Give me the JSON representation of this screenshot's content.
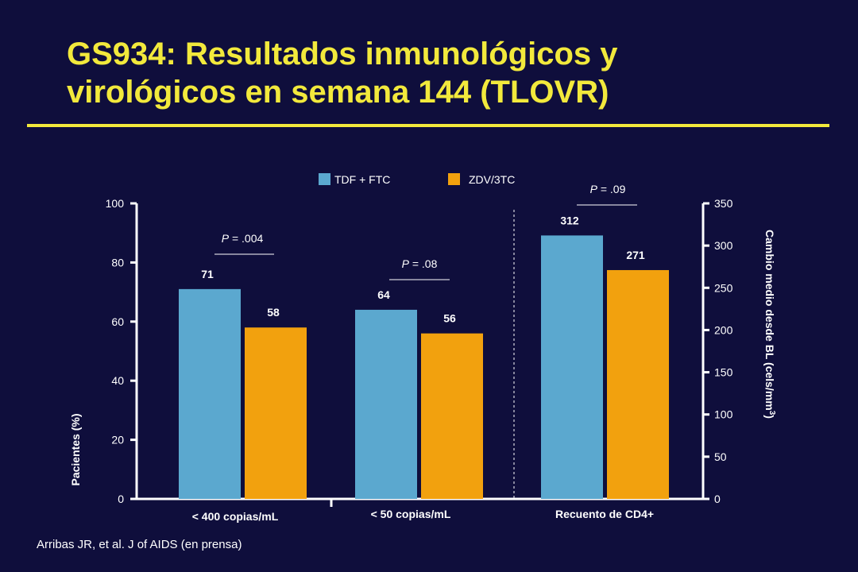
{
  "slide": {
    "title_line1": "GS934: Resultados inmunológicos y",
    "title_line2": "virológicos en semana 144 (TLOVR)",
    "citation": "Arribas JR, et al. J of AIDS (en prensa)"
  },
  "colors": {
    "background": "#0f0e3c",
    "title": "#f2e93c",
    "tdf_ftc": "#5ba8cf",
    "zdv_3tc": "#f2a10e",
    "text": "#ffffff"
  },
  "chart_data": {
    "type": "bar",
    "legend": [
      {
        "name": "TDF + FTC",
        "color": "#5ba8cf"
      },
      {
        "name": "ZDV/3TC",
        "color": "#f2a10e"
      }
    ],
    "legend_placement": "top",
    "categories": [
      "< 400 copias/mL",
      "< 50 copias/mL",
      "Recuento de CD4+"
    ],
    "series": [
      {
        "name": "TDF + FTC",
        "values": [
          71,
          64,
          312
        ],
        "labels": [
          "71",
          "64",
          "312"
        ]
      },
      {
        "name": "ZDV/3TC",
        "values": [
          58,
          56,
          271
        ],
        "labels": [
          "58",
          "56",
          "271"
        ]
      }
    ],
    "axis_per_category": [
      "left",
      "left",
      "right"
    ],
    "p_values": [
      {
        "p": "P",
        "text": " = .004"
      },
      {
        "p": "P",
        "text": " = .08"
      },
      {
        "p": "P",
        "text": " = .09"
      }
    ],
    "y_left": {
      "label": "Pacientes (%)",
      "min": 0,
      "max": 100,
      "ticks": [
        0,
        20,
        40,
        60,
        80,
        100
      ]
    },
    "y_right": {
      "label_main": "Cambio medio desde BL (cels/mm",
      "label_sup": "3",
      "label_end": ")",
      "min": 0,
      "max": 350,
      "ticks": [
        0,
        50,
        100,
        150,
        200,
        250,
        300,
        350
      ]
    },
    "grid": false
  }
}
